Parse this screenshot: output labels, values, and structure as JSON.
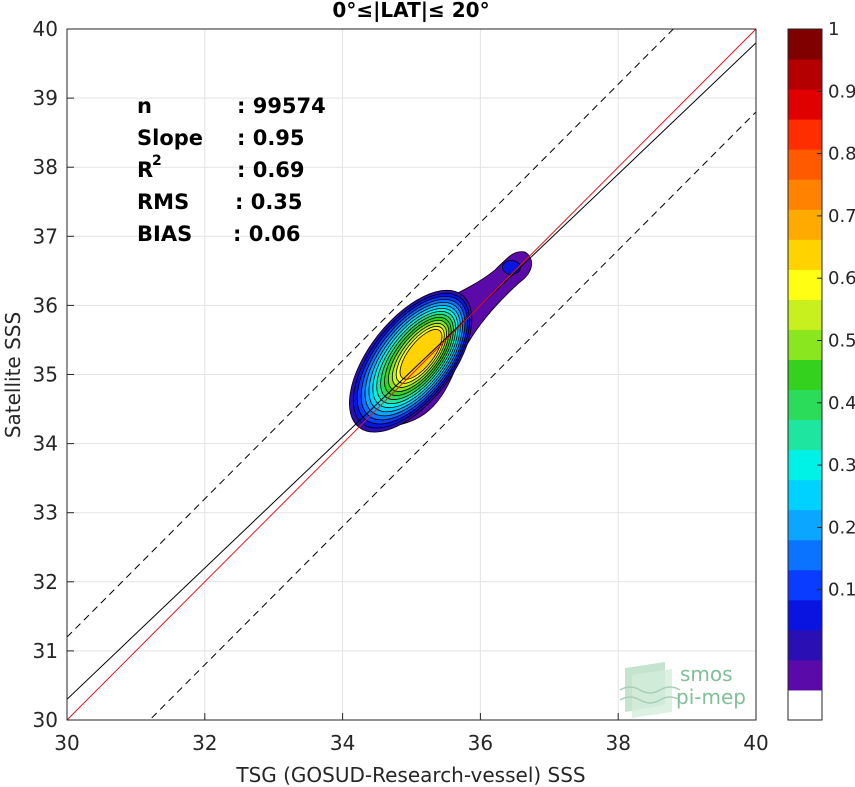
{
  "chart_data": {
    "type": "scatter",
    "title": "0°≤|LAT|≤ 20°",
    "xlabel": "TSG (GOSUD-Research-vessel) SSS",
    "ylabel": "Satellite SSS",
    "xlim": [
      30,
      40
    ],
    "ylim": [
      30,
      40
    ],
    "xticks": [
      "30",
      "32",
      "34",
      "36",
      "38",
      "40"
    ],
    "yticks": [
      "30",
      "31",
      "32",
      "33",
      "34",
      "35",
      "36",
      "37",
      "38",
      "39",
      "40"
    ],
    "grid": true,
    "stats": [
      {
        "label": "n",
        "value": ": 99574"
      },
      {
        "label": "Slope",
        "value": ": 0.95"
      },
      {
        "label": "R",
        "sup": "2",
        "value": ": 0.69"
      },
      {
        "label": "RMS",
        "value": ": 0.35"
      },
      {
        "label": "BIAS",
        "value": ": 0.06"
      }
    ],
    "lines": {
      "identity": {
        "x": [
          30,
          40
        ],
        "y": [
          30,
          40
        ],
        "color": "#e8141c"
      },
      "regression": {
        "x": [
          30,
          40
        ],
        "y": [
          30.3,
          39.8
        ],
        "color": "#000000"
      },
      "upper_bound": {
        "x": [
          30,
          40
        ],
        "y": [
          31.2,
          41.2
        ],
        "color": "#000000",
        "style": "dashed"
      },
      "lower_bound": {
        "x": [
          30,
          40
        ],
        "y": [
          28.8,
          38.8
        ],
        "color": "#000000",
        "style": "dashed"
      }
    },
    "density_center": {
      "x": 35.15,
      "y": 35.3
    },
    "colorbar": {
      "ticks": [
        "0.1",
        "0.2",
        "0.3",
        "0.4",
        "0.5",
        "0.6",
        "0.7",
        "0.8",
        "0.9",
        "1"
      ],
      "colors": [
        "#ffffff",
        "#5a0aa8",
        "#2a10b4",
        "#0a14e0",
        "#0a3cff",
        "#0a73ff",
        "#0aa6ff",
        "#00d2ff",
        "#00f2e6",
        "#1ee6a0",
        "#2adc5a",
        "#34d21e",
        "#8ae61e",
        "#c8f01e",
        "#ffff14",
        "#ffd200",
        "#ffaa00",
        "#ff8200",
        "#ff5a00",
        "#ff2d00",
        "#e00000",
        "#b40000",
        "#800000"
      ]
    }
  },
  "logo": {
    "line1": "smos",
    "line2": "pi-mep"
  }
}
